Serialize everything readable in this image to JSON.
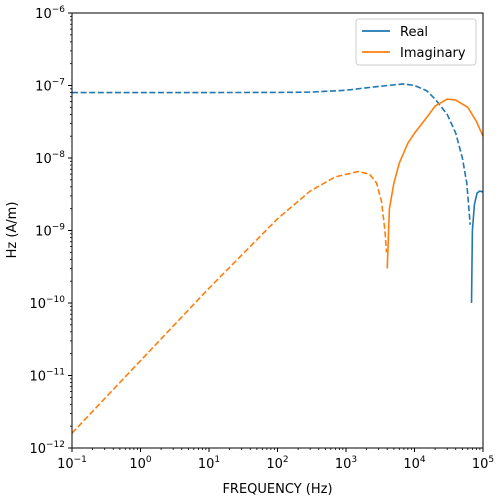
{
  "chart_data": {
    "type": "line",
    "title": "",
    "xlabel": "FREQUENCY (Hz)",
    "ylabel": "Hz (A/m)",
    "xscale": "log",
    "yscale": "log",
    "xlim": [
      0.1,
      100000
    ],
    "ylim": [
      1e-12,
      1e-06
    ],
    "grid": false,
    "legend_position": "top-right",
    "x_ticks": [
      {
        "value": 0.1,
        "base": "10",
        "exp": "−1"
      },
      {
        "value": 1,
        "base": "10",
        "exp": "0"
      },
      {
        "value": 10,
        "base": "10",
        "exp": "1"
      },
      {
        "value": 100,
        "base": "10",
        "exp": "2"
      },
      {
        "value": 1000,
        "base": "10",
        "exp": "3"
      },
      {
        "value": 10000,
        "base": "10",
        "exp": "4"
      },
      {
        "value": 100000,
        "base": "10",
        "exp": "5"
      }
    ],
    "y_ticks": [
      {
        "value": 1e-12,
        "base": "10",
        "exp": "−12"
      },
      {
        "value": 1e-11,
        "base": "10",
        "exp": "−11"
      },
      {
        "value": 1e-10,
        "base": "10",
        "exp": "−10"
      },
      {
        "value": 1e-09,
        "base": "10",
        "exp": "−9"
      },
      {
        "value": 1e-08,
        "base": "10",
        "exp": "−8"
      },
      {
        "value": 1e-07,
        "base": "10",
        "exp": "−7"
      },
      {
        "value": 1e-06,
        "base": "10",
        "exp": "−6"
      }
    ],
    "series": [
      {
        "name": "Real",
        "color": "#1f77b4",
        "segments": [
          {
            "style": "dashed",
            "points": [
              [
                0.1,
                8e-08
              ],
              [
                1,
                8e-08
              ],
              [
                10,
                8e-08
              ],
              [
                100,
                8.02e-08
              ],
              [
                300,
                8.1e-08
              ],
              [
                1000,
                8.6e-08
              ],
              [
                2000,
                9.3e-08
              ],
              [
                4000,
                1e-07
              ],
              [
                7000,
                1.05e-07
              ],
              [
                10000,
                1e-07
              ],
              [
                15000,
                8.5e-08
              ],
              [
                20000,
                6.5e-08
              ],
              [
                30000,
                4e-08
              ],
              [
                40000,
                2.2e-08
              ],
              [
                50000,
                1e-08
              ],
              [
                58000,
                4.5e-09
              ],
              [
                65000,
                1.2e-09
              ]
            ]
          },
          {
            "style": "solid",
            "points": [
              [
                68000,
                1e-10
              ],
              [
                70000,
                1e-09
              ],
              [
                75000,
                2.3e-09
              ],
              [
                82000,
                3.3e-09
              ],
              [
                90000,
                3.5e-09
              ],
              [
                100000,
                3.4e-09
              ]
            ]
          }
        ]
      },
      {
        "name": "Imaginary",
        "color": "#ff7f0e",
        "segments": [
          {
            "style": "dashed",
            "points": [
              [
                0.1,
                1.6e-12
              ],
              [
                1,
                1.6e-11
              ],
              [
                10,
                1.6e-10
              ],
              [
                100,
                1.45e-09
              ],
              [
                300,
                3.5e-09
              ],
              [
                700,
                5.5e-09
              ],
              [
                1500,
                6.5e-09
              ],
              [
                2200,
                6e-09
              ],
              [
                2800,
                4.5e-09
              ],
              [
                3300,
                2.5e-09
              ],
              [
                3700,
                1e-09
              ],
              [
                3900,
                5e-10
              ]
            ]
          },
          {
            "style": "solid",
            "points": [
              [
                4000,
                3e-10
              ],
              [
                4300,
                2e-09
              ],
              [
                5000,
                4.5e-09
              ],
              [
                6000,
                8.5e-09
              ],
              [
                8000,
                1.6e-08
              ],
              [
                10000,
                2.2e-08
              ],
              [
                15000,
                3.6e-08
              ],
              [
                20000,
                5.2e-08
              ],
              [
                30000,
                6.5e-08
              ],
              [
                40000,
                6.3e-08
              ],
              [
                60000,
                5e-08
              ],
              [
                80000,
                3.2e-08
              ],
              [
                100000,
                2e-08
              ]
            ]
          }
        ]
      }
    ]
  }
}
